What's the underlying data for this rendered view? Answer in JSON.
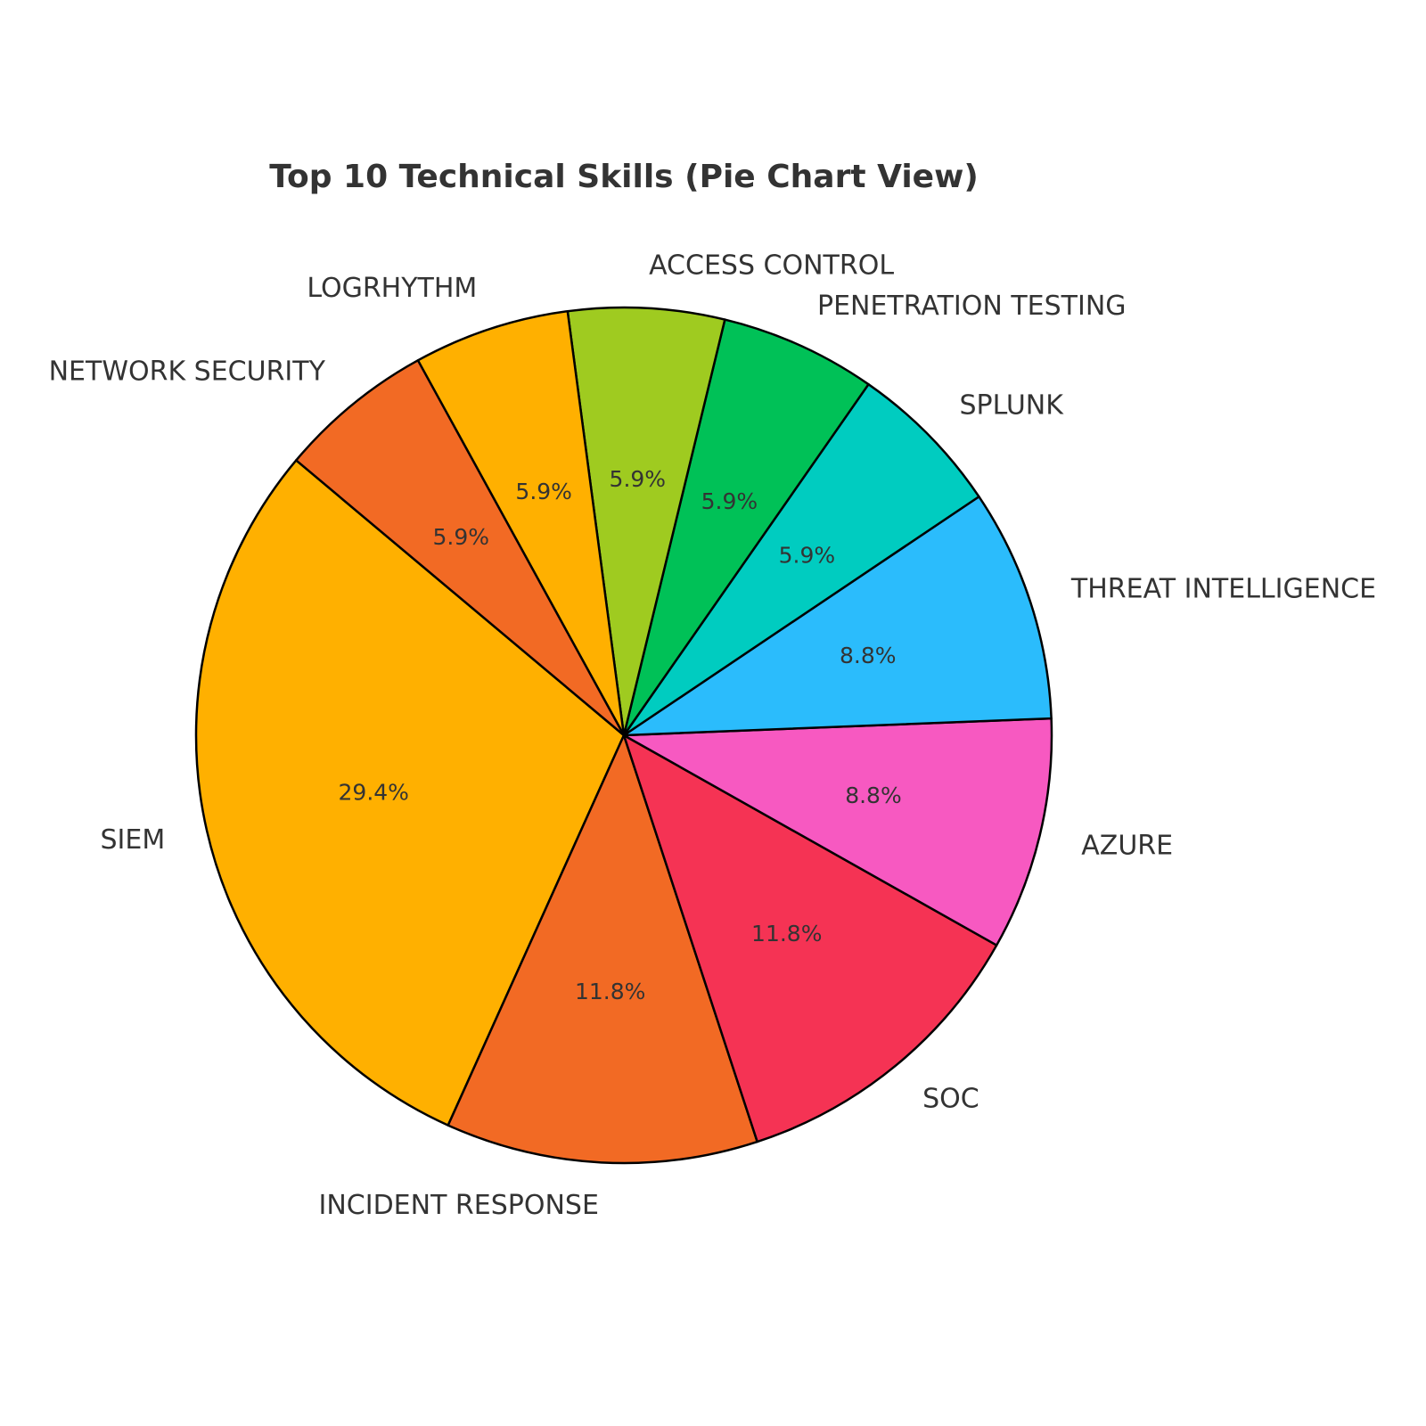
{
  "chart_data": {
    "type": "pie",
    "title": "Top 10 Technical Skills (Pie Chart View)",
    "start_angle_deg": 140,
    "direction": "counterclockwise",
    "slices": [
      {
        "label": "SIEM",
        "value": 29.4,
        "pct_label": "29.4%",
        "color": "#FFB000"
      },
      {
        "label": "INCIDENT RESPONSE",
        "value": 11.8,
        "pct_label": "11.8%",
        "color": "#F26A24"
      },
      {
        "label": "SOC",
        "value": 11.8,
        "pct_label": "11.8%",
        "color": "#F53354"
      },
      {
        "label": "AZURE",
        "value": 8.8,
        "pct_label": "8.8%",
        "color": "#F759C1"
      },
      {
        "label": "THREAT INTELLIGENCE",
        "value": 8.8,
        "pct_label": "8.8%",
        "color": "#2BBCFC"
      },
      {
        "label": "SPLUNK",
        "value": 5.9,
        "pct_label": "5.9%",
        "color": "#00CCC0"
      },
      {
        "label": "PENETRATION TESTING",
        "value": 5.9,
        "pct_label": "5.9%",
        "color": "#00C157"
      },
      {
        "label": "ACCESS CONTROL",
        "value": 5.9,
        "pct_label": "5.9%",
        "color": "#9FCB20"
      },
      {
        "label": "LOGRHYTHM",
        "value": 5.9,
        "pct_label": "5.9%",
        "color": "#FFB000"
      },
      {
        "label": "NETWORK SECURITY",
        "value": 5.9,
        "pct_label": "5.9%",
        "color": "#F26A24"
      }
    ]
  }
}
